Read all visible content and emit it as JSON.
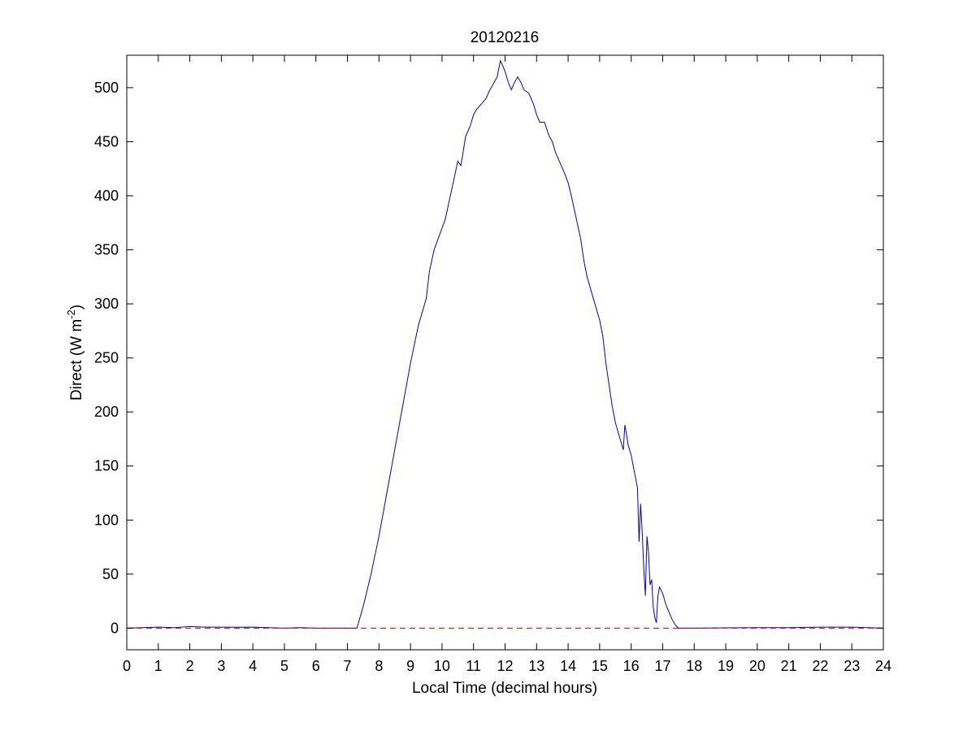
{
  "chart_data": {
    "type": "line",
    "title": "20120216",
    "xlabel": "Local Time (decimal hours)",
    "ylabel_main": "Direct (W m",
    "ylabel_sup": "-2",
    "ylabel_close": ")",
    "xlim": [
      0,
      24
    ],
    "ylim": [
      -20,
      530
    ],
    "xticks": [
      0,
      1,
      2,
      3,
      4,
      5,
      6,
      7,
      8,
      9,
      10,
      11,
      12,
      13,
      14,
      15,
      16,
      17,
      18,
      19,
      20,
      21,
      22,
      23,
      24
    ],
    "yticks": [
      0,
      50,
      100,
      150,
      200,
      250,
      300,
      350,
      400,
      450,
      500
    ],
    "grid": false,
    "series": [
      {
        "color": "#0000cc",
        "style": "solid",
        "x": [
          0,
          0.5,
          1,
          1.5,
          2,
          2.5,
          3,
          3.5,
          4,
          4.5,
          5,
          5.5,
          6,
          6.5,
          7,
          7.3,
          7.5,
          7.75,
          8,
          8.25,
          8.5,
          8.75,
          9,
          9.25,
          9.5,
          9.6,
          9.75,
          9.9,
          10,
          10.1,
          10.25,
          10.4,
          10.5,
          10.6,
          10.75,
          10.9,
          11,
          11.1,
          11.25,
          11.4,
          11.5,
          11.6,
          11.75,
          11.85,
          11.9,
          12,
          12.1,
          12.2,
          12.3,
          12.4,
          12.5,
          12.6,
          12.75,
          12.9,
          13,
          13.1,
          13.25,
          13.4,
          13.5,
          13.6,
          13.75,
          13.9,
          14,
          14.1,
          14.25,
          14.4,
          14.5,
          14.6,
          14.75,
          14.9,
          15,
          15.1,
          15.2,
          15.3,
          15.4,
          15.5,
          15.6,
          15.7,
          15.75,
          15.8,
          15.85,
          15.9,
          16,
          16.1,
          16.2,
          16.25,
          16.3,
          16.35,
          16.4,
          16.45,
          16.5,
          16.55,
          16.6,
          16.65,
          16.7,
          16.75,
          16.8,
          16.85,
          16.9,
          17,
          17.1,
          17.2,
          17.3,
          17.4,
          17.5,
          17.6,
          18,
          19,
          20,
          21,
          22,
          22.5,
          23,
          23.5,
          24
        ],
        "y": [
          0,
          0.5,
          1,
          0.5,
          1.5,
          1,
          1,
          0.8,
          1,
          0.5,
          0,
          0.5,
          0,
          0,
          0,
          0,
          20,
          50,
          85,
          125,
          165,
          205,
          245,
          280,
          305,
          330,
          350,
          362,
          370,
          378,
          398,
          418,
          432,
          428,
          455,
          465,
          475,
          480,
          485,
          490,
          497,
          502,
          510,
          525,
          522,
          515,
          505,
          498,
          505,
          510,
          505,
          498,
          495,
          485,
          475,
          468,
          468,
          455,
          450,
          440,
          430,
          420,
          412,
          400,
          380,
          360,
          340,
          325,
          310,
          295,
          285,
          270,
          245,
          225,
          205,
          190,
          180,
          170,
          165,
          188,
          180,
          170,
          160,
          145,
          130,
          80,
          115,
          90,
          55,
          30,
          85,
          70,
          40,
          45,
          20,
          10,
          5,
          30,
          38,
          32,
          22,
          15,
          8,
          3,
          0,
          0,
          0,
          0.3,
          0.5,
          0.5,
          1,
          1,
          1,
          0.5,
          0
        ]
      },
      {
        "color": "#cc0000",
        "style": "dashed",
        "x": [
          0,
          24
        ],
        "y": [
          0,
          0
        ]
      }
    ]
  }
}
